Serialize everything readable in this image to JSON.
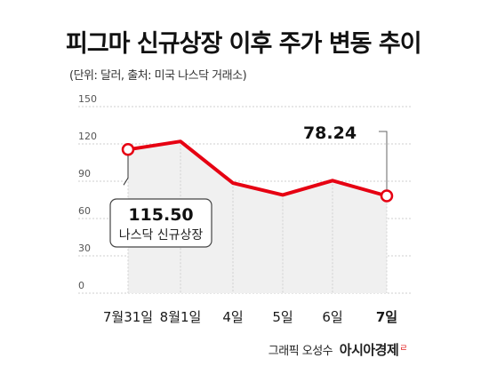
{
  "header": {
    "title": "피그마 신규상장 이후 주가 변동 추이",
    "subtitle": "(단위: 달러, 출처: 미국 나스닥 거래소)"
  },
  "chart_data": {
    "type": "area",
    "categories": [
      "7월31일",
      "8월1일",
      "4일",
      "5일",
      "6일",
      "7일"
    ],
    "series": [
      {
        "values": [
          115.5,
          122.0,
          88.5,
          79.0,
          90.5,
          78.24
        ]
      }
    ],
    "yticks": [
      "150",
      "120",
      "90",
      "60",
      "30",
      "0"
    ],
    "ylim": [
      0,
      150
    ],
    "grid": true,
    "annotations": [
      {
        "index": 0,
        "value_label": "115.50",
        "note": "나스닥 신규상장"
      },
      {
        "index": 5,
        "value_label": "78.24"
      }
    ],
    "colors": {
      "line": "#e60012",
      "area": "#f0f0f0",
      "grid": "#cfcfcf"
    }
  },
  "footer": {
    "credit": "그래픽 오성수",
    "brand": "아시아경제",
    "brand_mark": "ㄹ"
  }
}
